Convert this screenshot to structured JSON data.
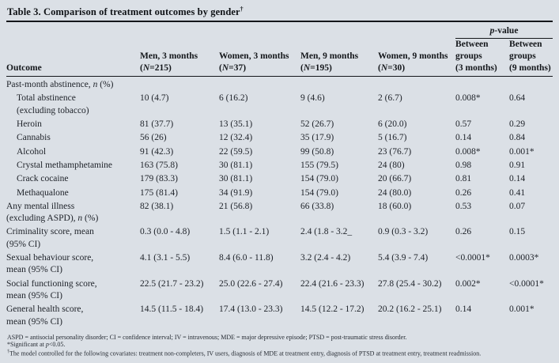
{
  "title": {
    "text": "Table 3. Comparison of treatment outcomes by gender",
    "mark": "†"
  },
  "table": {
    "p_value_group_label": "p-value",
    "columns": [
      {
        "id": "outcome",
        "lines": [
          "Outcome"
        ]
      },
      {
        "id": "men-3-months",
        "lines": [
          "Men, 3 months",
          "(N=215)"
        ]
      },
      {
        "id": "women-3-months",
        "lines": [
          "Women, 3 months",
          "(N=37)"
        ]
      },
      {
        "id": "men-9-months",
        "lines": [
          "Men, 9 months",
          "(N=195)"
        ]
      },
      {
        "id": "women-9-months",
        "lines": [
          "Women, 9 months",
          "(N=30)"
        ]
      },
      {
        "id": "between-groups-3-months",
        "lines": [
          "Between",
          "groups",
          "(3 months)"
        ]
      },
      {
        "id": "between-groups-9-months",
        "lines": [
          "Between",
          "groups",
          "(9 months)"
        ]
      }
    ],
    "rows": [
      {
        "label": "Past-month abstinence, n (%)",
        "indent": false,
        "values": [
          "",
          "",
          "",
          "",
          "",
          ""
        ]
      },
      {
        "label": "Total abstinence",
        "label2": "(excluding tobacco)",
        "indent": true,
        "values": [
          "10 (4.7)",
          "6 (16.2)",
          "9 (4.6)",
          "2 (6.7)",
          "0.008*",
          "0.64"
        ]
      },
      {
        "label": "Heroin",
        "indent": true,
        "values": [
          "81 (37.7)",
          "13 (35.1)",
          "52 (26.7)",
          "6 (20.0)",
          "0.57",
          "0.29"
        ]
      },
      {
        "label": "Cannabis",
        "indent": true,
        "values": [
          "56 (26)",
          "12 (32.4)",
          "35 (17.9)",
          "5 (16.7)",
          "0.14",
          "0.84"
        ]
      },
      {
        "label": "Alcohol",
        "indent": true,
        "values": [
          "91 (42.3)",
          "22 (59.5)",
          "99 (50.8)",
          "23 (76.7)",
          "0.008*",
          "0.001*"
        ]
      },
      {
        "label": "Crystal methamphetamine",
        "indent": true,
        "values": [
          "163 (75.8)",
          "30 (81.1)",
          "155 (79.5)",
          "24 (80)",
          "0.98",
          "0.91"
        ]
      },
      {
        "label": "Crack cocaine",
        "indent": true,
        "values": [
          "179 (83.3)",
          "30 (81.1)",
          "154 (79.0)",
          "20 (66.7)",
          "0.81",
          "0.14"
        ]
      },
      {
        "label": "Methaqualone",
        "indent": true,
        "values": [
          "175 (81.4)",
          "34 (91.9)",
          "154 (79.0)",
          "24 (80.0)",
          "0.26",
          "0.41"
        ]
      },
      {
        "label": "Any mental illness",
        "label2": "(excluding ASPD), n (%)",
        "indent": false,
        "values": [
          "82 (38.1)",
          "21 (56.8)",
          "66 (33.8)",
          "18 (60.0)",
          "0.53",
          "0.07"
        ]
      },
      {
        "label": "Criminality score, mean",
        "label2": "(95% CI)",
        "indent": false,
        "values": [
          "0.3 (0.0 - 4.8)",
          "1.5 (1.1 - 2.1)",
          "2.4 (1.8 - 3.2_",
          "0.9 (0.3 - 3.2)",
          "0.26",
          "0.15"
        ]
      },
      {
        "label": "Sexual behaviour score,",
        "label2": "mean (95% CI)",
        "indent": false,
        "values": [
          "4.1 (3.1 - 5.5)",
          "8.4 (6.0 - 11.8)",
          "3.2 (2.4 - 4.2)",
          "5.4 (3.9 - 7.4)",
          "<0.0001*",
          "0.0003*"
        ]
      },
      {
        "label": "Social functioning score,",
        "label2": "mean (95% CI)",
        "indent": false,
        "values": [
          "22.5 (21.7 - 23.2)",
          "25.0 (22.6 - 27.4)",
          "22.4 (21.6 - 23.3)",
          "27.8 (25.4 - 30.2)",
          "0.002*",
          "<0.0001*"
        ]
      },
      {
        "label": "General health score,",
        "label2": "mean (95% CI)",
        "indent": false,
        "values": [
          "14.5 (11.5 - 18.4)",
          "17.4 (13.0 - 23.3)",
          "14.5 (12.2 - 17.2)",
          "20.2 (16.2 - 25.1)",
          "0.14",
          "0.001*"
        ]
      }
    ]
  },
  "footnotes": [
    "ASPD = antisocial personality disorder; CI = confidence interval; IV = intravenous; MDE = major depressive episode; PTSD = post-traumatic stress disorder.",
    "*Significant at p<0.05.",
    "†The model controlled for the following covariates: treatment non-completers, IV users, diagnosis of MDE at treatment entry, diagnosis of PTSD at treatment entry, treatment readmission."
  ]
}
